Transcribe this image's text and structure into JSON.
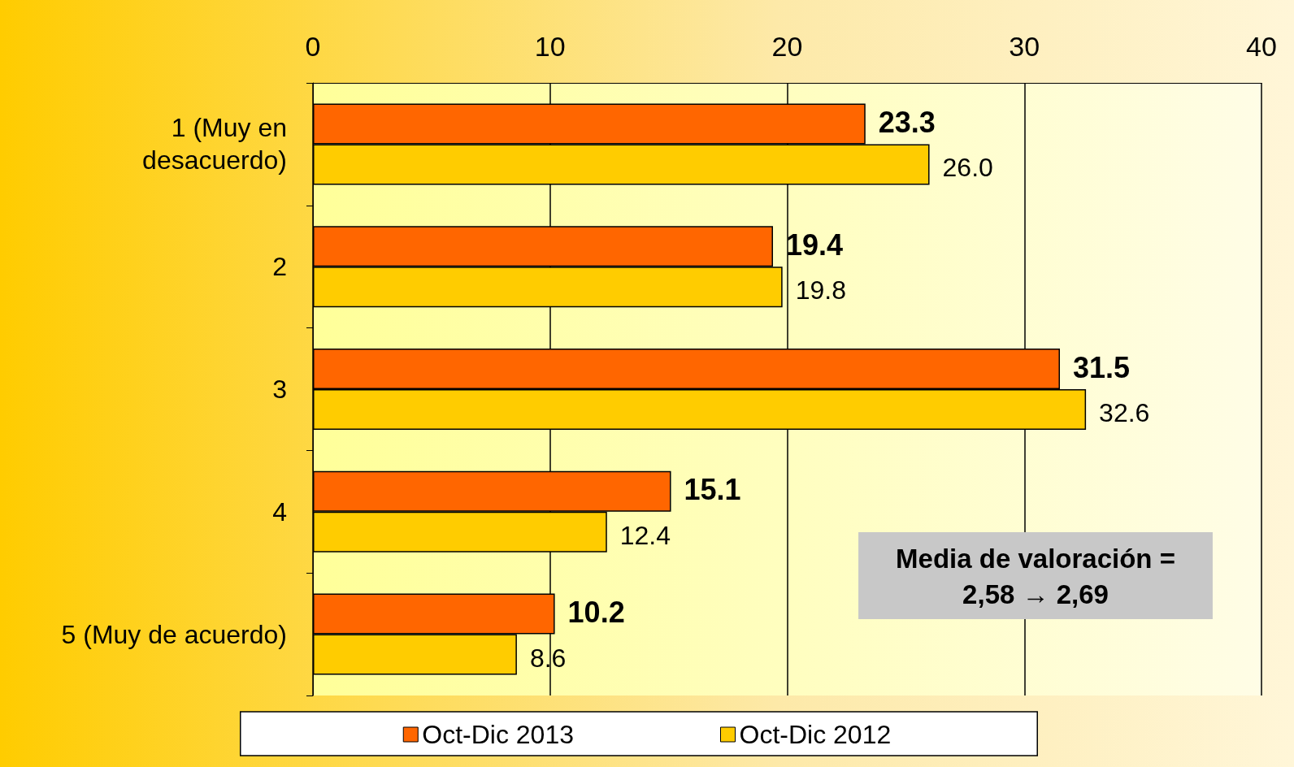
{
  "chart_data": {
    "type": "bar",
    "orientation": "horizontal",
    "categories": [
      "1 (Muy en\ndesacuerdo)",
      "2",
      "3",
      "4",
      "5 (Muy de acuerdo)"
    ],
    "series": [
      {
        "name": "Oct-Dic 2013",
        "color": "#ff6600",
        "values": [
          23.3,
          19.4,
          31.5,
          15.1,
          10.2
        ]
      },
      {
        "name": "Oct-Dic 2012",
        "color": "#ffcc00",
        "values": [
          26.0,
          19.8,
          32.6,
          12.4,
          8.6
        ]
      }
    ],
    "value_labels": [
      [
        "23.3",
        "19.4",
        "31.5",
        "15.1",
        "10.2"
      ],
      [
        "26.0",
        "19.8",
        "32.6",
        "12.4",
        "8.6"
      ]
    ],
    "xlim": [
      0,
      40
    ],
    "xticks": [
      0,
      10,
      20,
      30,
      40
    ],
    "grid": "x",
    "legend": "bottom",
    "annotations": [
      "Media de valoración =\n2,58 → 2,69"
    ]
  }
}
